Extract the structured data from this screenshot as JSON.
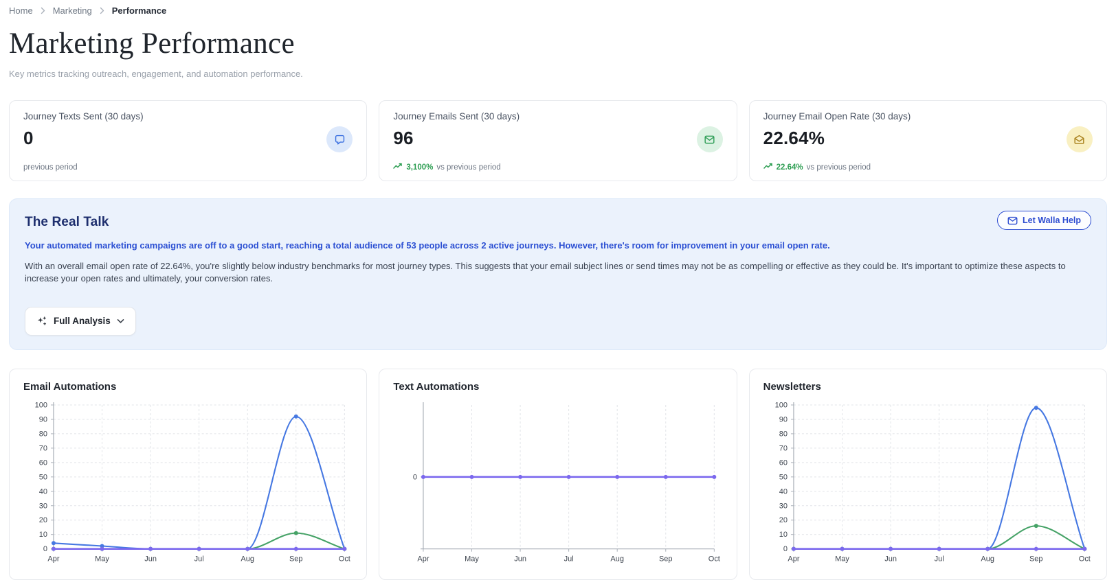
{
  "breadcrumb": {
    "items": [
      {
        "label": "Home"
      },
      {
        "label": "Marketing"
      },
      {
        "label": "Performance"
      }
    ]
  },
  "header": {
    "title": "Marketing Performance",
    "subtitle": "Key metrics tracking outreach, engagement, and automation performance."
  },
  "kpi_cards": [
    {
      "label": "Journey Texts Sent (30 days)",
      "value": "0",
      "trend_value": "",
      "trend_suffix": "previous period",
      "icon": "chat-bubble-icon",
      "icon_bg": "#dce8fb",
      "icon_color": "#3a6fe0"
    },
    {
      "label": "Journey Emails Sent (30 days)",
      "value": "96",
      "trend_value": "3,100%",
      "trend_suffix": "vs previous period",
      "icon": "envelope-icon",
      "icon_bg": "#dcf2e3",
      "icon_color": "#2f9e57"
    },
    {
      "label": "Journey Email Open Rate (30 days)",
      "value": "22.64%",
      "trend_value": "22.64%",
      "trend_suffix": "vs previous period",
      "icon": "envelope-open-icon",
      "icon_bg": "#f9f0c2",
      "icon_color": "#a9811c"
    }
  ],
  "real_talk": {
    "title": "The Real Talk",
    "help_button_label": "Let Walla Help",
    "lead": "Your automated marketing campaigns are off to a good start, reaching a total audience of 53 people across 2 active journeys. However, there's room for improvement in your email open rate.",
    "body": "With an overall email open rate of 22.64%, you're slightly below industry benchmarks for most journey types. This suggests that your email subject lines or send times may not be as compelling or effective as they could be. It's important to optimize these aspects to increase your open rates and ultimately, your conversion rates.",
    "analysis_button_label": "Full Analysis"
  },
  "chart_data": [
    {
      "type": "line",
      "title": "Email Automations",
      "x": [
        "Apr",
        "May",
        "Jun",
        "Jul",
        "Aug",
        "Sep",
        "Oct"
      ],
      "ylim": [
        0,
        100
      ],
      "yticks": [
        0,
        10,
        20,
        30,
        40,
        50,
        60,
        70,
        80,
        90,
        100
      ],
      "grid": true,
      "legend": "none",
      "series": [
        {
          "color": "#4678e2",
          "values": [
            4,
            2,
            0,
            0,
            0,
            92,
            0
          ]
        },
        {
          "color": "#45a266",
          "values": [
            0,
            0,
            0,
            0,
            0,
            11,
            0
          ]
        },
        {
          "color": "#7b68ee",
          "values": [
            0,
            0,
            0,
            0,
            0,
            0,
            0
          ]
        }
      ]
    },
    {
      "type": "line",
      "title": "Text Automations",
      "x": [
        "Apr",
        "May",
        "Jun",
        "Jul",
        "Aug",
        "Sep",
        "Oct"
      ],
      "ylim": [
        -1,
        1
      ],
      "yticks": [
        0
      ],
      "grid": true,
      "legend": "none",
      "series": [
        {
          "color": "#7b68ee",
          "values": [
            0,
            0,
            0,
            0,
            0,
            0,
            0
          ]
        }
      ]
    },
    {
      "type": "line",
      "title": "Newsletters",
      "x": [
        "Apr",
        "May",
        "Jun",
        "Jul",
        "Aug",
        "Sep",
        "Oct"
      ],
      "ylim": [
        0,
        100
      ],
      "yticks": [
        0,
        10,
        20,
        30,
        40,
        50,
        60,
        70,
        80,
        90,
        100
      ],
      "grid": true,
      "legend": "none",
      "series": [
        {
          "color": "#4678e2",
          "values": [
            0,
            0,
            0,
            0,
            0,
            98,
            0
          ]
        },
        {
          "color": "#45a266",
          "values": [
            0,
            0,
            0,
            0,
            0,
            16,
            0
          ]
        },
        {
          "color": "#7b68ee",
          "values": [
            0,
            0,
            0,
            0,
            0,
            0,
            0
          ]
        }
      ]
    }
  ]
}
